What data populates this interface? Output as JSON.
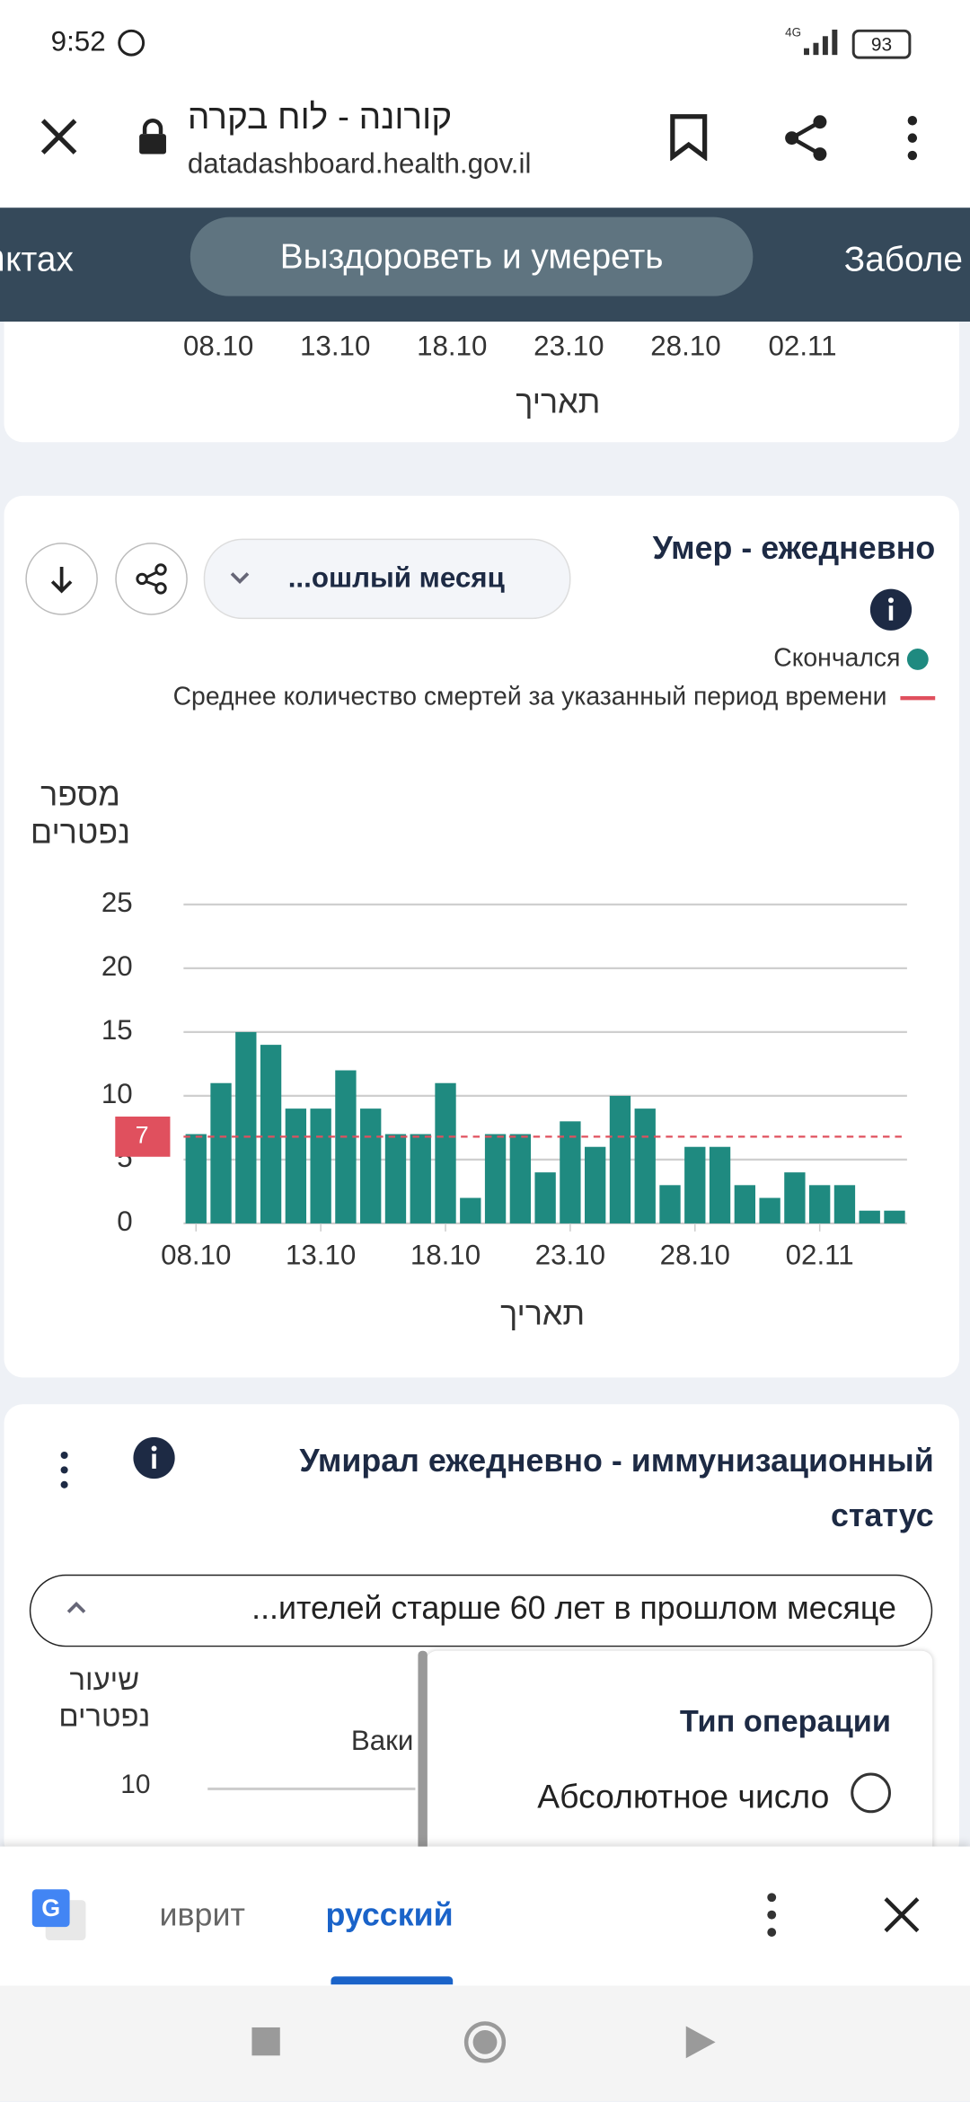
{
  "status_bar": {
    "time": "9:52",
    "network": "4G",
    "battery": "93"
  },
  "browser": {
    "title": "קורונה - לוח בקרה",
    "url": "datadashboard.health.gov.il"
  },
  "tabs": {
    "left": "נктах",
    "active": "Выздороветь и умереть",
    "right": "Заболе"
  },
  "top_axis": {
    "ticks": [
      "08.10",
      "13.10",
      "18.10",
      "23.10",
      "28.10",
      "02.11"
    ],
    "label": "תאריך"
  },
  "card": {
    "period": "...ошлый месяц"
  },
  "chart_data": {
    "type": "bar",
    "title": "Умер - ежедневно",
    "y_label": "מספר נפטרים",
    "x_label": "תאריך",
    "categories": [
      "08.10",
      null,
      null,
      null,
      null,
      "13.10",
      null,
      null,
      null,
      null,
      "18.10",
      null,
      null,
      null,
      null,
      "23.10",
      null,
      null,
      null,
      null,
      "28.10",
      null,
      null,
      null,
      null,
      "02.11",
      null,
      null,
      null
    ],
    "series": [
      {
        "name": "Скончался",
        "color": "#1f8a80",
        "values": [
          7,
          11,
          15,
          14,
          9,
          9,
          12,
          9,
          7,
          7,
          11,
          2,
          7,
          7,
          4,
          8,
          6,
          10,
          9,
          3,
          6,
          6,
          3,
          2,
          4,
          3,
          3,
          1,
          1
        ]
      }
    ],
    "average": {
      "name": "Среднее количество смертей за указанный период времени",
      "value": 6.8,
      "label": "7",
      "color": "#e0505e"
    },
    "ylim": [
      0,
      25
    ],
    "yticks": [
      0,
      5,
      10,
      15,
      20,
      25
    ],
    "grid": true
  },
  "card2": {
    "title": "Умирал ежедневно - иммунизационный статус",
    "filter": "...ителей старше 60 лет в прошлом месяце",
    "y_label": "שיעור נפטרים",
    "ytick": "10",
    "series_partial": "Ваки",
    "options_title": "Тип операции",
    "option": "Абсолютное число"
  },
  "translate_bar": {
    "from": "иврит",
    "to": "русский"
  }
}
